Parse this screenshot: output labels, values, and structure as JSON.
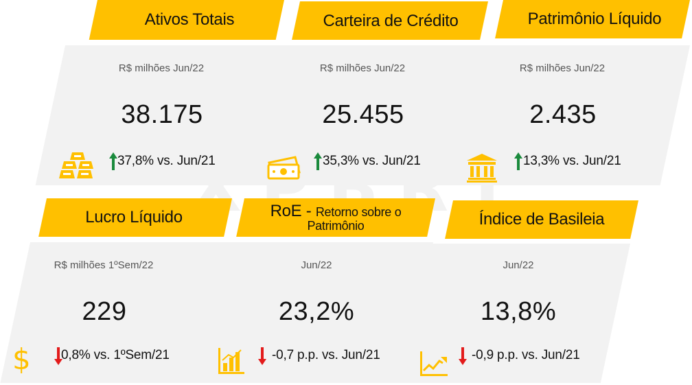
{
  "watermark": "XPBRT",
  "colors": {
    "accent": "#ffc000",
    "panel": "#f2f2f2",
    "up": "#1a8a3c",
    "down": "#e31b1b"
  },
  "cards": [
    {
      "title": "Ativos Totais",
      "subtitle": "R$ milhões Jun/22",
      "value": "38.175",
      "delta": "37,8% vs. Jun/21",
      "direction": "up",
      "icon": "gold-bars-icon"
    },
    {
      "title": "Carteira de Crédito",
      "subtitle": "R$ milhões Jun/22",
      "value": "25.455",
      "delta": "35,3% vs. Jun/21",
      "direction": "up",
      "icon": "banknotes-icon"
    },
    {
      "title": "Patrimônio Líquido",
      "subtitle": "R$ milhões Jun/22",
      "value": "2.435",
      "delta": "13,3% vs. Jun/21",
      "direction": "up",
      "icon": "bank-building-icon"
    },
    {
      "title": "Lucro Líquido",
      "subtitle": "R$ milhões 1ºSem/22",
      "value": "229",
      "delta": "0,8% vs. 1ºSem/21",
      "direction": "down",
      "icon": "dollar-sign-icon"
    },
    {
      "title": "RoE -",
      "title_small": "Retorno sobre o",
      "title_line2": "Patrimônio",
      "subtitle": "Jun/22",
      "value": "23,2%",
      "delta": "-0,7 p.p. vs. Jun/21",
      "direction": "down",
      "icon": "bar-chart-icon"
    },
    {
      "title": "Índice de Basileia",
      "subtitle": "Jun/22",
      "value": "13,8%",
      "delta": "-0,9 p.p. vs. Jun/21",
      "direction": "down",
      "icon": "line-chart-icon"
    }
  ]
}
